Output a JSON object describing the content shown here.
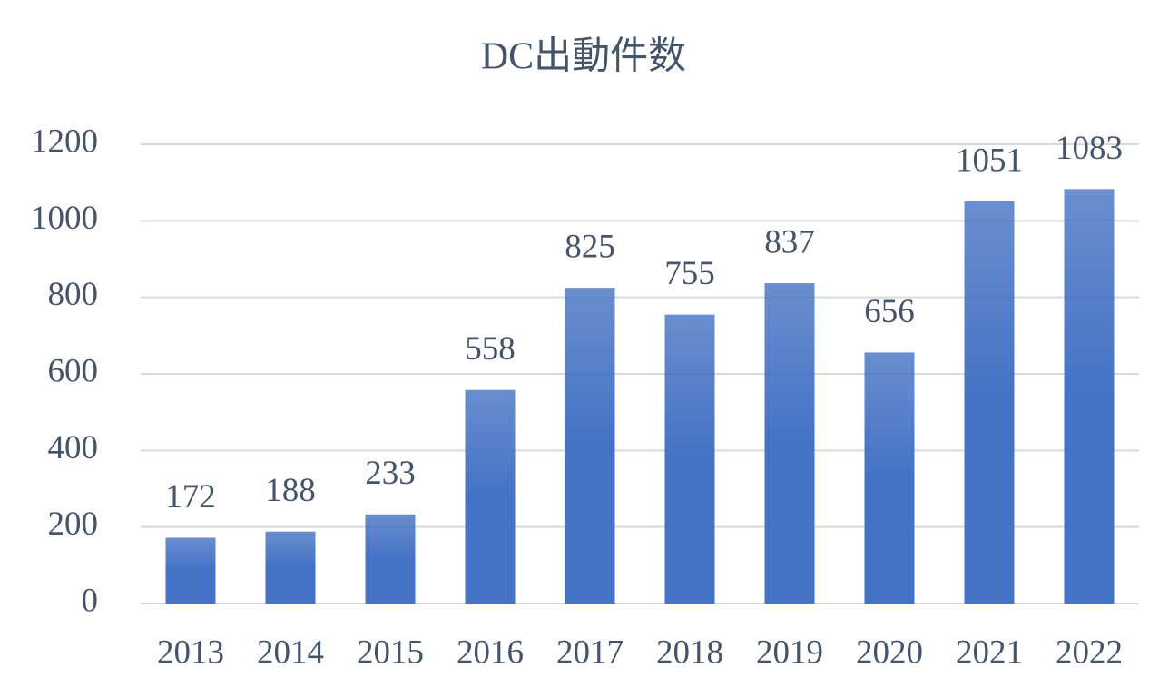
{
  "chart_data": {
    "type": "bar",
    "title": "DC出動件数",
    "categories": [
      "2013",
      "2014",
      "2015",
      "2016",
      "2017",
      "2018",
      "2019",
      "2020",
      "2021",
      "2022"
    ],
    "values": [
      172,
      188,
      233,
      558,
      825,
      755,
      837,
      656,
      1051,
      1083
    ],
    "color": "#4472c4",
    "ylim": [
      0,
      1200
    ],
    "yticks": [
      0,
      200,
      400,
      600,
      800,
      1000,
      1200
    ],
    "grid": true
  }
}
